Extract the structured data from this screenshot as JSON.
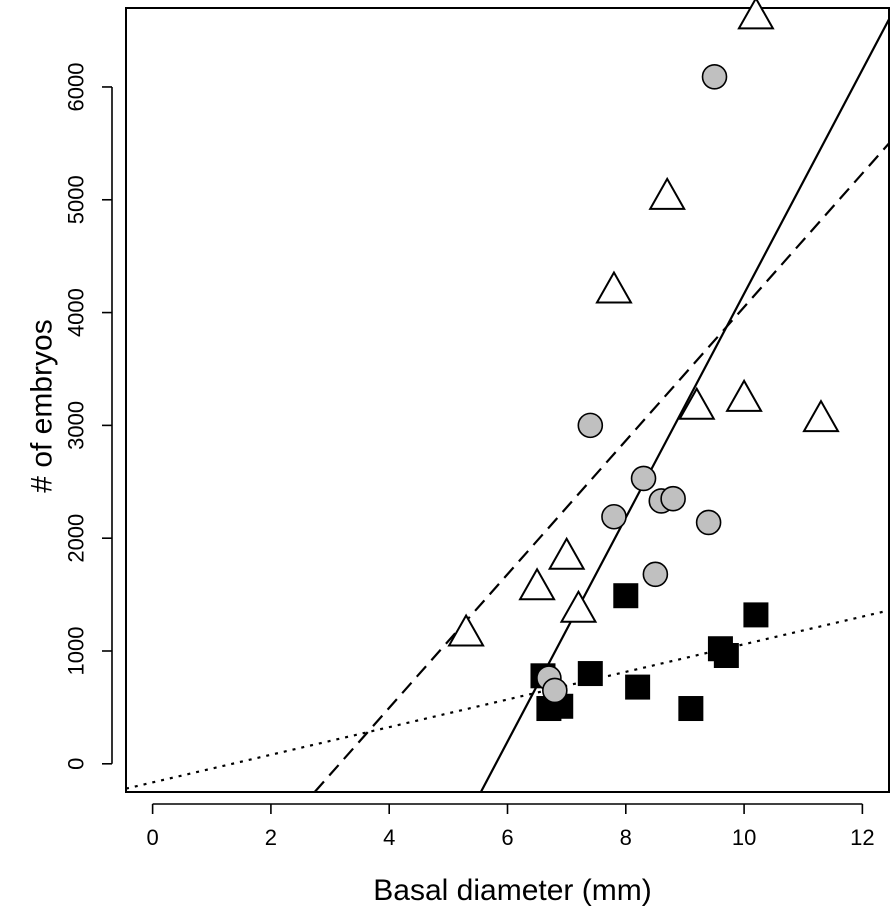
{
  "chart_data": {
    "type": "scatter",
    "xlabel": "Basal diameter (mm)",
    "ylabel": "# of embryos",
    "xlim": [
      -0.45,
      12.45
    ],
    "ylim": [
      -250,
      6700
    ],
    "x_ticks": [
      0,
      2,
      4,
      6,
      8,
      10,
      12
    ],
    "y_ticks": [
      0,
      1000,
      2000,
      3000,
      4000,
      5000,
      6000
    ],
    "grid": false,
    "series": [
      {
        "marker": "triangle",
        "fill": "#ffffff",
        "stroke": "#000000",
        "line_style": "dashed",
        "fit_line": {
          "x1": 2.74,
          "y1": -250,
          "x2": 12.45,
          "y2": 5500
        },
        "points": [
          {
            "x": 5.3,
            "y": 1150
          },
          {
            "x": 6.5,
            "y": 1560
          },
          {
            "x": 7.0,
            "y": 1830
          },
          {
            "x": 7.2,
            "y": 1360
          },
          {
            "x": 7.8,
            "y": 4190
          },
          {
            "x": 8.7,
            "y": 5020
          },
          {
            "x": 9.2,
            "y": 3160
          },
          {
            "x": 10.0,
            "y": 3230
          },
          {
            "x": 10.2,
            "y": 6620
          },
          {
            "x": 11.3,
            "y": 3050
          }
        ]
      },
      {
        "marker": "circle",
        "fill": "#c0c0c0",
        "stroke": "#000000",
        "line_style": "solid",
        "fit_line": {
          "x1": 5.55,
          "y1": -250,
          "x2": 12.45,
          "y2": 6600
        },
        "points": [
          {
            "x": 6.7,
            "y": 760
          },
          {
            "x": 6.8,
            "y": 650
          },
          {
            "x": 7.4,
            "y": 3000
          },
          {
            "x": 7.8,
            "y": 2190
          },
          {
            "x": 8.3,
            "y": 2530
          },
          {
            "x": 8.5,
            "y": 1680
          },
          {
            "x": 8.6,
            "y": 2330
          },
          {
            "x": 8.8,
            "y": 2350
          },
          {
            "x": 9.4,
            "y": 2140
          },
          {
            "x": 9.5,
            "y": 6090
          }
        ]
      },
      {
        "marker": "square",
        "fill": "#000000",
        "stroke": "#000000",
        "line_style": "dotted",
        "fit_line": {
          "x1": -0.45,
          "y1": -220,
          "x2": 12.45,
          "y2": 1360
        },
        "points": [
          {
            "x": 6.6,
            "y": 780
          },
          {
            "x": 6.7,
            "y": 490
          },
          {
            "x": 6.9,
            "y": 510
          },
          {
            "x": 7.4,
            "y": 800
          },
          {
            "x": 8.0,
            "y": 1490
          },
          {
            "x": 8.2,
            "y": 680
          },
          {
            "x": 9.1,
            "y": 490
          },
          {
            "x": 9.6,
            "y": 1020
          },
          {
            "x": 9.7,
            "y": 960
          },
          {
            "x": 10.2,
            "y": 1320
          }
        ]
      }
    ]
  }
}
